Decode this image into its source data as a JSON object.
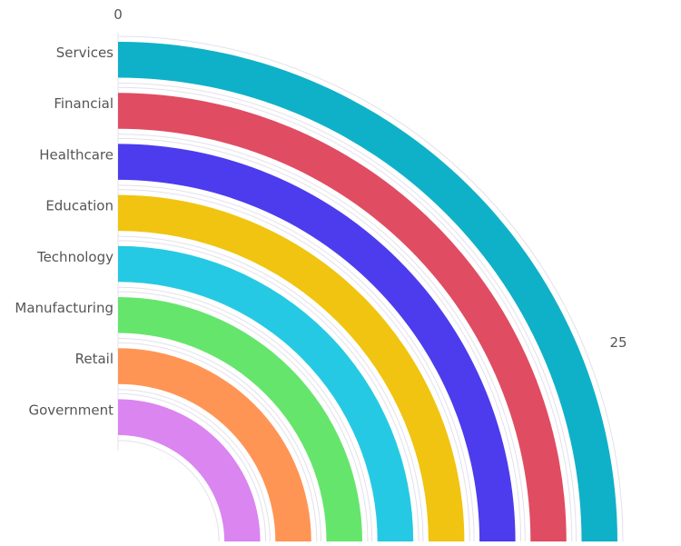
{
  "chart_data": {
    "type": "radial-bar",
    "title": "",
    "categories": [
      "Services",
      "Financial",
      "Healthcare",
      "Education",
      "Technology",
      "Manufacturing",
      "Retail",
      "Government"
    ],
    "values": [
      25,
      25,
      25,
      25,
      25,
      25,
      25,
      25
    ],
    "colors": [
      "#0fb1c8",
      "#e04c62",
      "#4c3ced",
      "#f0c410",
      "#26c9e3",
      "#65e56c",
      "#ff9555",
      "#da85f0"
    ],
    "axis": {
      "start_label": "0",
      "end_label": "25",
      "range": [
        0,
        25
      ],
      "sweep": "quarter-circle"
    },
    "grid": true
  }
}
